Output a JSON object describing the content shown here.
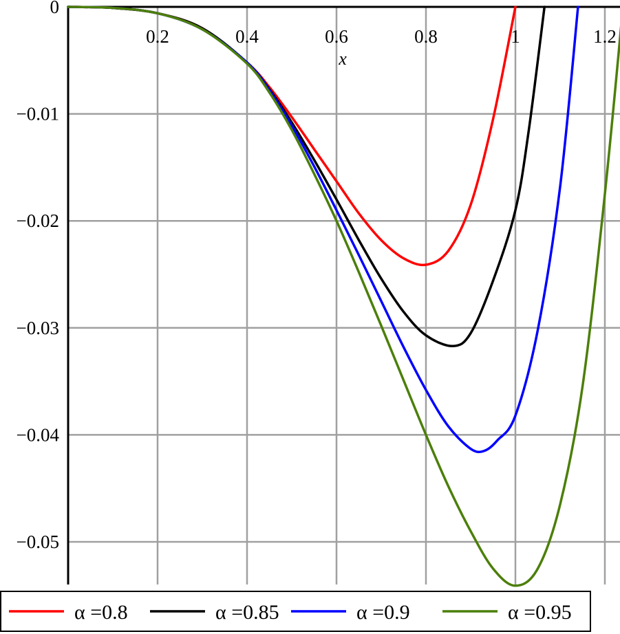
{
  "chart_data": {
    "type": "line",
    "title": "",
    "xlabel": "x",
    "ylabel": "",
    "xlim": [
      0,
      1.24
    ],
    "ylim": [
      -0.054,
      0
    ],
    "grid": true,
    "legend_position": "bottom",
    "x_ticks": [
      {
        "value": 0.2,
        "label": "0.2"
      },
      {
        "value": 0.4,
        "label": "0.4"
      },
      {
        "value": 0.6,
        "label": "0.6"
      },
      {
        "value": 0.8,
        "label": "0.8"
      },
      {
        "value": 1.0,
        "label": "1"
      },
      {
        "value": 1.2,
        "label": "1.2"
      }
    ],
    "y_ticks": [
      {
        "value": 0,
        "label": "0"
      },
      {
        "value": -0.01,
        "label": "−0.01"
      },
      {
        "value": -0.02,
        "label": "−0.02"
      },
      {
        "value": -0.03,
        "label": "−0.03"
      },
      {
        "value": -0.04,
        "label": "−0.04"
      },
      {
        "value": -0.05,
        "label": "−0.05"
      }
    ],
    "series": [
      {
        "name": "α =0.8",
        "color": "#ff0000",
        "points": [
          [
            0,
            0
          ],
          [
            0.1,
            -0.0001
          ],
          [
            0.2,
            -0.0006
          ],
          [
            0.3,
            -0.002
          ],
          [
            0.4,
            -0.0052
          ],
          [
            0.45,
            -0.0075
          ],
          [
            0.5,
            -0.0103
          ],
          [
            0.55,
            -0.0133
          ],
          [
            0.6,
            -0.0163
          ],
          [
            0.65,
            -0.0193
          ],
          [
            0.7,
            -0.0218
          ],
          [
            0.75,
            -0.0235
          ],
          [
            0.8,
            -0.0241
          ],
          [
            0.85,
            -0.0228
          ],
          [
            0.9,
            -0.0185
          ],
          [
            0.95,
            -0.0105
          ],
          [
            1.0,
            0
          ]
        ]
      },
      {
        "name": "α =0.85",
        "color": "#000000",
        "points": [
          [
            0,
            0
          ],
          [
            0.1,
            -0.0001
          ],
          [
            0.2,
            -0.0006
          ],
          [
            0.3,
            -0.002
          ],
          [
            0.4,
            -0.0052
          ],
          [
            0.45,
            -0.0077
          ],
          [
            0.5,
            -0.0108
          ],
          [
            0.55,
            -0.0143
          ],
          [
            0.6,
            -0.018
          ],
          [
            0.65,
            -0.0218
          ],
          [
            0.7,
            -0.0254
          ],
          [
            0.75,
            -0.0285
          ],
          [
            0.8,
            -0.0307
          ],
          [
            0.86,
            -0.0317
          ],
          [
            0.9,
            -0.0305
          ],
          [
            0.95,
            -0.0256
          ],
          [
            1.0,
            -0.019
          ],
          [
            1.03,
            -0.0115
          ],
          [
            1.065,
            0
          ]
        ]
      },
      {
        "name": "α =0.9",
        "color": "#0000ff",
        "points": [
          [
            0,
            0
          ],
          [
            0.1,
            -0.0001
          ],
          [
            0.2,
            -0.0006
          ],
          [
            0.3,
            -0.0021
          ],
          [
            0.4,
            -0.0052
          ],
          [
            0.45,
            -0.0078
          ],
          [
            0.5,
            -0.0111
          ],
          [
            0.55,
            -0.0149
          ],
          [
            0.6,
            -0.019
          ],
          [
            0.65,
            -0.0232
          ],
          [
            0.7,
            -0.0275
          ],
          [
            0.75,
            -0.0318
          ],
          [
            0.8,
            -0.0358
          ],
          [
            0.85,
            -0.0392
          ],
          [
            0.9,
            -0.0413
          ],
          [
            0.93,
            -0.0415
          ],
          [
            0.96,
            -0.0405
          ],
          [
            1.0,
            -0.0382
          ],
          [
            1.05,
            -0.0302
          ],
          [
            1.1,
            -0.0168
          ],
          [
            1.14,
            0
          ]
        ]
      },
      {
        "name": "α =0.95",
        "color": "#4c7f0a",
        "points": [
          [
            0,
            0
          ],
          [
            0.1,
            -0.0001
          ],
          [
            0.2,
            -0.0006
          ],
          [
            0.3,
            -0.0021
          ],
          [
            0.4,
            -0.0053
          ],
          [
            0.45,
            -0.008
          ],
          [
            0.5,
            -0.0115
          ],
          [
            0.55,
            -0.0156
          ],
          [
            0.6,
            -0.02
          ],
          [
            0.65,
            -0.0248
          ],
          [
            0.7,
            -0.0298
          ],
          [
            0.75,
            -0.0349
          ],
          [
            0.8,
            -0.04
          ],
          [
            0.85,
            -0.0448
          ],
          [
            0.9,
            -0.049
          ],
          [
            0.95,
            -0.0525
          ],
          [
            1.0,
            -0.0541
          ],
          [
            1.05,
            -0.0525
          ],
          [
            1.1,
            -0.0465
          ],
          [
            1.15,
            -0.0355
          ],
          [
            1.2,
            -0.0175
          ],
          [
            1.24,
            -0.0002
          ]
        ]
      }
    ]
  }
}
